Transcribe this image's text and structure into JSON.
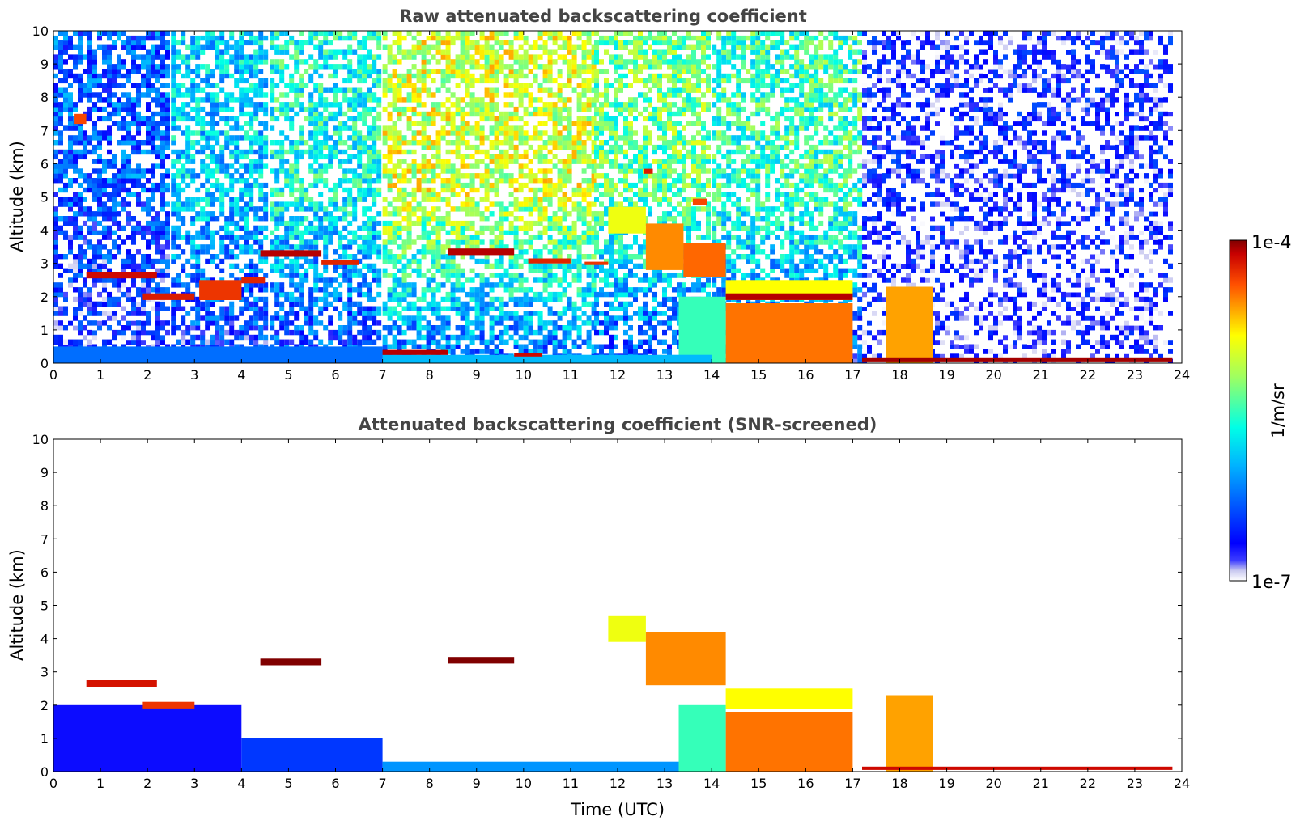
{
  "chart_data": [
    {
      "type": "heatmap",
      "title": "Raw attenuated backscattering coefficient",
      "xlabel": "",
      "ylabel": "Altitude (km)",
      "xlim": [
        0,
        24
      ],
      "ylim": [
        0,
        10
      ],
      "x_ticks": [
        "0",
        "1",
        "2",
        "3",
        "4",
        "5",
        "6",
        "7",
        "8",
        "9",
        "10",
        "11",
        "12",
        "13",
        "14",
        "15",
        "16",
        "17",
        "18",
        "19",
        "20",
        "21",
        "22",
        "23",
        "24"
      ],
      "y_ticks": [
        "0",
        "1",
        "2",
        "3",
        "4",
        "5",
        "6",
        "7",
        "8",
        "9",
        "10"
      ],
      "data_end_time": 23.8,
      "background_noise": [
        {
          "t0": 0,
          "t1": 2.5,
          "level": 0.22
        },
        {
          "t0": 2.5,
          "t1": 4.6,
          "level": 0.38
        },
        {
          "t0": 4.6,
          "t1": 7.0,
          "level": 0.45
        },
        {
          "t0": 7.0,
          "t1": 11.5,
          "level": 0.66
        },
        {
          "t0": 11.5,
          "t1": 14.0,
          "level": 0.55
        },
        {
          "t0": 14.0,
          "t1": 17.2,
          "level": 0.5
        },
        {
          "t0": 17.2,
          "t1": 23.8,
          "level": 0.08
        }
      ],
      "features": [
        {
          "kind": "layer",
          "t0": 0.7,
          "t1": 2.2,
          "alt_bottom": 2.55,
          "alt_top": 2.75,
          "level": 0.95
        },
        {
          "kind": "layer",
          "t0": 1.9,
          "t1": 3.0,
          "alt_bottom": 1.9,
          "alt_top": 2.1,
          "level": 0.93
        },
        {
          "kind": "layer",
          "t0": 3.1,
          "t1": 4.0,
          "alt_bottom": 1.9,
          "alt_top": 2.5,
          "level": 0.9
        },
        {
          "kind": "layer",
          "t0": 4.0,
          "t1": 4.5,
          "alt_bottom": 2.4,
          "alt_top": 2.6,
          "level": 0.92
        },
        {
          "kind": "layer",
          "t0": 4.4,
          "t1": 5.7,
          "alt_bottom": 3.2,
          "alt_top": 3.4,
          "level": 0.97
        },
        {
          "kind": "layer",
          "t0": 5.7,
          "t1": 6.5,
          "alt_bottom": 2.95,
          "alt_top": 3.1,
          "level": 0.92
        },
        {
          "kind": "layer",
          "t0": 8.4,
          "t1": 9.8,
          "alt_bottom": 3.25,
          "alt_top": 3.45,
          "level": 0.97
        },
        {
          "kind": "layer",
          "t0": 10.1,
          "t1": 11.0,
          "alt_bottom": 3.0,
          "alt_top": 3.15,
          "level": 0.92
        },
        {
          "kind": "layer",
          "t0": 11.3,
          "t1": 11.8,
          "alt_bottom": 2.95,
          "alt_top": 3.05,
          "level": 0.9
        },
        {
          "kind": "layer",
          "t0": 0.45,
          "t1": 0.7,
          "alt_bottom": 7.2,
          "alt_top": 7.5,
          "level": 0.88
        },
        {
          "kind": "layer",
          "t0": 12.55,
          "t1": 12.75,
          "alt_bottom": 5.7,
          "alt_top": 5.85,
          "level": 0.93
        },
        {
          "kind": "layer",
          "t0": 13.6,
          "t1": 13.9,
          "alt_bottom": 4.75,
          "alt_top": 4.95,
          "level": 0.88
        },
        {
          "kind": "layer",
          "t0": 11.8,
          "t1": 12.6,
          "alt_bottom": 3.9,
          "alt_top": 4.7,
          "level": 0.7
        },
        {
          "kind": "layer",
          "t0": 12.6,
          "t1": 13.4,
          "alt_bottom": 2.8,
          "alt_top": 4.2,
          "level": 0.82
        },
        {
          "kind": "layer",
          "t0": 13.4,
          "t1": 14.3,
          "alt_bottom": 2.6,
          "alt_top": 3.6,
          "level": 0.85
        },
        {
          "kind": "layer",
          "t0": 14.3,
          "t1": 17.0,
          "alt_bottom": 1.9,
          "alt_top": 2.5,
          "level": 0.72
        },
        {
          "kind": "layer",
          "t0": 14.3,
          "t1": 17.0,
          "alt_bottom": 1.9,
          "alt_top": 2.1,
          "level": 0.97
        },
        {
          "kind": "layer",
          "t0": 14.3,
          "t1": 17.0,
          "alt_bottom": 0.0,
          "alt_top": 1.8,
          "level": 0.84
        },
        {
          "kind": "layer",
          "t0": 13.3,
          "t1": 14.3,
          "alt_bottom": 0.0,
          "alt_top": 2.0,
          "level": 0.5
        },
        {
          "kind": "layer",
          "t0": 17.7,
          "t1": 18.7,
          "alt_bottom": 0.0,
          "alt_top": 2.3,
          "level": 0.8
        },
        {
          "kind": "layer",
          "t0": 0.0,
          "t1": 7.0,
          "alt_bottom": 0.0,
          "alt_top": 0.5,
          "level": 0.25
        },
        {
          "kind": "layer",
          "t0": 7.0,
          "t1": 14.0,
          "alt_bottom": 0.0,
          "alt_top": 0.25,
          "level": 0.35
        },
        {
          "kind": "layer",
          "t0": 7.0,
          "t1": 8.4,
          "alt_bottom": 0.25,
          "alt_top": 0.4,
          "level": 0.97
        },
        {
          "kind": "layer",
          "t0": 9.8,
          "t1": 10.4,
          "alt_bottom": 0.2,
          "alt_top": 0.3,
          "level": 0.95
        },
        {
          "kind": "layer",
          "t0": 17.2,
          "t1": 23.8,
          "alt_bottom": 0.05,
          "alt_top": 0.15,
          "level": 0.98
        }
      ]
    },
    {
      "type": "heatmap",
      "title": "Attenuated backscattering coefficient (SNR-screened)",
      "xlabel": "Time (UTC)",
      "ylabel": "Altitude (km)",
      "xlim": [
        0,
        24
      ],
      "ylim": [
        0,
        10
      ],
      "x_ticks": [
        "0",
        "1",
        "2",
        "3",
        "4",
        "5",
        "6",
        "7",
        "8",
        "9",
        "10",
        "11",
        "12",
        "13",
        "14",
        "15",
        "16",
        "17",
        "18",
        "19",
        "20",
        "21",
        "22",
        "23",
        "24"
      ],
      "y_ticks": [
        "0",
        "1",
        "2",
        "3",
        "4",
        "5",
        "6",
        "7",
        "8",
        "9",
        "10"
      ],
      "data_end_time": 23.8,
      "features": [
        {
          "kind": "layer",
          "t0": 0.0,
          "t1": 4.0,
          "alt_bottom": 0.0,
          "alt_top": 2.0,
          "level": 0.1
        },
        {
          "kind": "layer",
          "t0": 4.0,
          "t1": 7.0,
          "alt_bottom": 0.0,
          "alt_top": 1.0,
          "level": 0.18
        },
        {
          "kind": "layer",
          "t0": 0.7,
          "t1": 2.2,
          "alt_bottom": 2.55,
          "alt_top": 2.75,
          "level": 0.94
        },
        {
          "kind": "layer",
          "t0": 1.9,
          "t1": 3.0,
          "alt_bottom": 1.9,
          "alt_top": 2.1,
          "level": 0.9
        },
        {
          "kind": "layer",
          "t0": 4.4,
          "t1": 5.7,
          "alt_bottom": 3.2,
          "alt_top": 3.4,
          "level": 1.0
        },
        {
          "kind": "layer",
          "t0": 8.4,
          "t1": 9.8,
          "alt_bottom": 3.25,
          "alt_top": 3.45,
          "level": 1.0
        },
        {
          "kind": "layer",
          "t0": 7.0,
          "t1": 14.0,
          "alt_bottom": 0.0,
          "alt_top": 0.3,
          "level": 0.3
        },
        {
          "kind": "layer",
          "t0": 11.8,
          "t1": 12.6,
          "alt_bottom": 3.9,
          "alt_top": 4.7,
          "level": 0.7
        },
        {
          "kind": "layer",
          "t0": 12.6,
          "t1": 14.3,
          "alt_bottom": 2.6,
          "alt_top": 4.2,
          "level": 0.82
        },
        {
          "kind": "layer",
          "t0": 14.3,
          "t1": 17.0,
          "alt_bottom": 1.9,
          "alt_top": 2.5,
          "level": 0.72
        },
        {
          "kind": "layer",
          "t0": 14.3,
          "t1": 17.0,
          "alt_bottom": 0.0,
          "alt_top": 1.8,
          "level": 0.84
        },
        {
          "kind": "layer",
          "t0": 13.3,
          "t1": 14.3,
          "alt_bottom": 0.0,
          "alt_top": 2.0,
          "level": 0.5
        },
        {
          "kind": "layer",
          "t0": 17.7,
          "t1": 18.7,
          "alt_bottom": 0.0,
          "alt_top": 2.3,
          "level": 0.8
        },
        {
          "kind": "layer",
          "t0": 17.2,
          "t1": 23.8,
          "alt_bottom": 0.05,
          "alt_top": 0.15,
          "level": 0.95
        }
      ]
    }
  ],
  "colorbar": {
    "label": "1/m/sr",
    "max_label": "1e-4",
    "min_label": "1e-7",
    "colormap": "jet",
    "scale": "log"
  }
}
